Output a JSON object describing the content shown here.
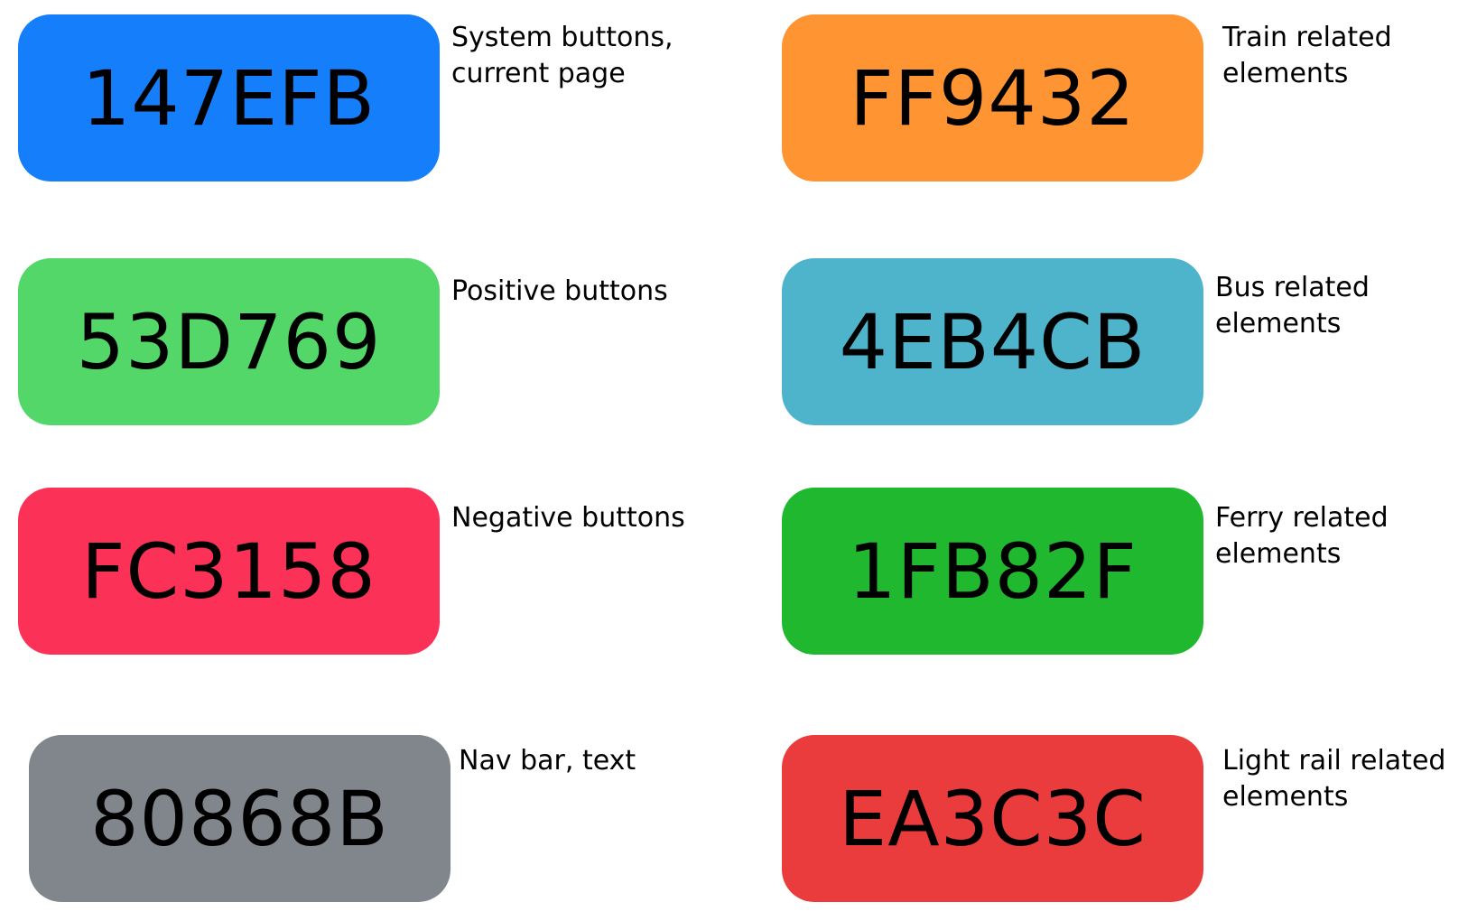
{
  "swatches": [
    {
      "code": "147EFB",
      "color": "#147EFB",
      "description": "System buttons,\ncurrent page"
    },
    {
      "code": "53D769",
      "color": "#53D769",
      "description": "Positive buttons"
    },
    {
      "code": "FC3158",
      "color": "#FC3158",
      "description": "Negative buttons"
    },
    {
      "code": "80868B",
      "color": "#80868B",
      "description": "Nav bar, text"
    },
    {
      "code": "FF9432",
      "color": "#FF9432",
      "description": "Train related\nelements"
    },
    {
      "code": "4EB4CB",
      "color": "#4EB4CB",
      "description": "Bus related\nelements"
    },
    {
      "code": "1FB82F",
      "color": "#1FB82F",
      "description": "Ferry related\nelements"
    },
    {
      "code": "EA3C3C",
      "color": "#EA3C3C",
      "description": "Light rail related\nelements"
    }
  ]
}
